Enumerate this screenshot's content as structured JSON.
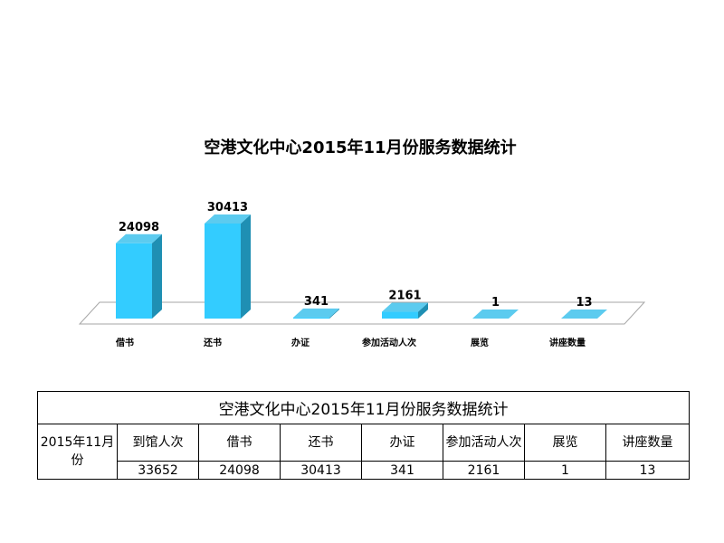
{
  "chart_data": {
    "type": "bar",
    "title": "空港文化中心2015年11月份服务数据统计",
    "categories": [
      "借书",
      "还书",
      "办证",
      "参加活动人次",
      "展览",
      "讲座数量"
    ],
    "values": [
      24098,
      30413,
      341,
      2161,
      1,
      13
    ],
    "ylim": [
      0,
      30413
    ],
    "grid": false,
    "legend": "none"
  },
  "table": {
    "title": "空港文化中心2015年11月份服务数据统计",
    "month_label": "2015年11月份",
    "headers": [
      "到馆人次",
      "借书",
      "还书",
      "办证",
      "参加活动人次",
      "展览",
      "讲座数量"
    ],
    "values": [
      "33652",
      "24098",
      "30413",
      "341",
      "2161",
      "1",
      "13"
    ]
  },
  "colors": {
    "bar_front": "#33CCFF",
    "bar_side": "#1F8FB3",
    "bar_top": "#5CCBEF",
    "floor_fill": "#FFFFFF",
    "floor_stroke": "#A6A6A6"
  }
}
